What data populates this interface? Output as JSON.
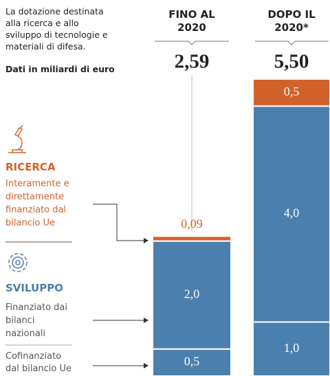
{
  "chart_data": {
    "type": "stacked_bar",
    "intro": "La dotazione destinata alla ricerca e allo sviluppo di tecnologie e materiali di difesa.",
    "unit_note": "Dati in miliardi di euro",
    "headings": {
      "ricerca": "RICERCA",
      "sviluppo": "SVILUPPO"
    },
    "categories": [
      "FINO AL 2020",
      "DOPO IL 2020*"
    ],
    "totals": [
      2.59,
      5.5
    ],
    "total_labels": [
      "2,59",
      "5,50"
    ],
    "series": [
      {
        "name": "Cofinanziato dal bilancio Ue",
        "color": "#4b7fad",
        "values": [
          0.5,
          1.0
        ],
        "value_labels": [
          "0,5",
          "1,0"
        ]
      },
      {
        "name": "Finanziato dai bilanci nazionali",
        "color": "#4b7fad",
        "values": [
          2.0,
          4.0
        ],
        "value_labels": [
          "2,0",
          "4,0"
        ]
      },
      {
        "name": "Interamente e direttamente finanziato dal bilancio Ue",
        "color": "#d2622b",
        "values": [
          0.09,
          0.5
        ],
        "value_labels": [
          "0,09",
          "0,5"
        ]
      }
    ]
  }
}
